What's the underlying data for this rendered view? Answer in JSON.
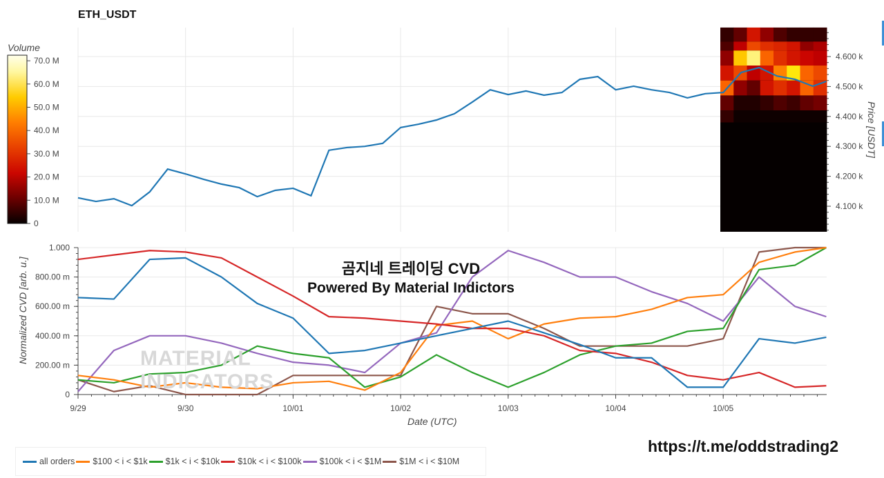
{
  "header": {
    "title": "ETH_USDT"
  },
  "overlay": {
    "line1": "곰지네 트레이딩 CVD",
    "line2": "Powered By Material Indictors",
    "link": "https://t.me/oddstrading2"
  },
  "watermark": {
    "line1": "MATERIAL",
    "line2": "INDICATORS"
  },
  "colors": {
    "all": "#1f77b4",
    "o100": "#ff7f0e",
    "o1k": "#2ca02c",
    "o10k": "#d62728",
    "o100k": "#9467bd",
    "o1m": "#8c564b"
  },
  "chart_data": [
    {
      "type": "line",
      "title": "ETH_USDT",
      "ylabel": "Price [USDT]",
      "yticks": [
        "4.100 k",
        "4.200 k",
        "4.300 k",
        "4.400 k",
        "4.500 k",
        "4.600 k"
      ],
      "ytick_values": [
        4100,
        4200,
        4300,
        4400,
        4500,
        4600
      ],
      "ylim": [
        4015,
        4697
      ],
      "x_hours_from_9_29": [
        0,
        4,
        8,
        12,
        16,
        20,
        24,
        28,
        32,
        36,
        40,
        44,
        48,
        52,
        56,
        60,
        64,
        68,
        72,
        76,
        80,
        84,
        88,
        92,
        96,
        100,
        104,
        108,
        112,
        116,
        120,
        124,
        128,
        132,
        136,
        140,
        144,
        148,
        152,
        156,
        160,
        164,
        167
      ],
      "price": [
        4128,
        4116,
        4125,
        4102,
        4148,
        4224,
        4208,
        4190,
        4174,
        4162,
        4132,
        4153,
        4160,
        4135,
        4287,
        4296,
        4300,
        4310,
        4363,
        4374,
        4388,
        4409,
        4448,
        4489,
        4473,
        4485,
        4471,
        4480,
        4524,
        4533,
        4489,
        4501,
        4489,
        4480,
        4462,
        4476,
        4480,
        4547,
        4563,
        4535,
        4524,
        4501,
        4517
      ],
      "heatmap": {
        "colorbar_title": "Volume",
        "colorbar_ticks": [
          "0",
          "10.0 M",
          "20.0 M",
          "30.0 M",
          "40.0 M",
          "50.0 M",
          "60.0 M",
          "70.0 M"
        ],
        "colorbar_values": [
          0,
          10,
          20,
          30,
          40,
          50,
          60,
          70
        ],
        "price_bins": [
          4665,
          4635,
          4595,
          4545,
          4495,
          4445,
          4400
        ],
        "column_count": 8,
        "volume_millions": [
          [
            5,
            10,
            25,
            15,
            8,
            5,
            5,
            5
          ],
          [
            8,
            20,
            35,
            30,
            28,
            25,
            15,
            18
          ],
          [
            15,
            55,
            65,
            40,
            30,
            25,
            22,
            20
          ],
          [
            25,
            35,
            20,
            25,
            45,
            60,
            40,
            35
          ],
          [
            40,
            15,
            10,
            25,
            30,
            25,
            40,
            30
          ],
          [
            10,
            3,
            3,
            5,
            8,
            6,
            10,
            12
          ],
          [
            5,
            1,
            1,
            1,
            1,
            1,
            1,
            1
          ]
        ]
      }
    },
    {
      "type": "line",
      "xlabel": "Date (UTC)",
      "ylabel": "Normalized CVD [arb. u.]",
      "xticks": [
        "9/29",
        "9/30",
        "10/01",
        "10/02",
        "10/03",
        "10/04",
        "10/05"
      ],
      "yticks": [
        "0",
        "200.00 m",
        "400.00 m",
        "600.00 m",
        "800.00 m",
        "1.000"
      ],
      "ytick_values": [
        0,
        0.2,
        0.4,
        0.6,
        0.8,
        1.0
      ],
      "ylim": [
        0,
        1
      ],
      "x_hours_from_9_29": [
        0,
        8,
        16,
        24,
        32,
        40,
        48,
        56,
        64,
        72,
        80,
        88,
        96,
        104,
        112,
        120,
        128,
        136,
        144,
        152,
        160,
        167
      ],
      "series": [
        {
          "name": "all orders",
          "color_key": "all",
          "values": [
            0.66,
            0.65,
            0.92,
            0.93,
            0.8,
            0.62,
            0.52,
            0.28,
            0.3,
            0.35,
            0.4,
            0.45,
            0.5,
            0.42,
            0.34,
            0.25,
            0.25,
            0.05,
            0.05,
            0.38,
            0.35,
            0.39
          ]
        },
        {
          "name": "$100 < i < $1k",
          "color_key": "o100",
          "values": [
            0.13,
            0.1,
            0.05,
            0.08,
            0.05,
            0.04,
            0.08,
            0.09,
            0.03,
            0.15,
            0.47,
            0.5,
            0.38,
            0.48,
            0.52,
            0.53,
            0.58,
            0.66,
            0.68,
            0.9,
            0.97,
            1.0
          ]
        },
        {
          "name": "$1k < i < $10k",
          "color_key": "o1k",
          "values": [
            0.1,
            0.08,
            0.14,
            0.15,
            0.2,
            0.33,
            0.28,
            0.25,
            0.05,
            0.12,
            0.27,
            0.15,
            0.05,
            0.15,
            0.27,
            0.33,
            0.35,
            0.43,
            0.45,
            0.85,
            0.88,
            1.0
          ]
        },
        {
          "name": "$10k < i < $100k",
          "color_key": "o10k",
          "values": [
            0.92,
            0.95,
            0.98,
            0.97,
            0.93,
            0.8,
            0.67,
            0.53,
            0.52,
            0.5,
            0.48,
            0.45,
            0.45,
            0.4,
            0.3,
            0.28,
            0.22,
            0.13,
            0.1,
            0.15,
            0.05,
            0.06
          ]
        },
        {
          "name": "$100k < i < $1M",
          "color_key": "o100k",
          "values": [
            0.02,
            0.3,
            0.4,
            0.4,
            0.35,
            0.28,
            0.22,
            0.2,
            0.15,
            0.35,
            0.42,
            0.8,
            0.98,
            0.9,
            0.8,
            0.8,
            0.7,
            0.62,
            0.5,
            0.8,
            0.6,
            0.53
          ]
        },
        {
          "name": "$1M < i < $10M",
          "color_key": "o1m",
          "values": [
            0.1,
            0.02,
            0.06,
            0.0,
            0.0,
            0.0,
            0.13,
            0.13,
            0.13,
            0.13,
            0.6,
            0.55,
            0.55,
            0.45,
            0.33,
            0.33,
            0.33,
            0.33,
            0.38,
            0.97,
            1.0,
            1.0
          ]
        }
      ]
    }
  ]
}
